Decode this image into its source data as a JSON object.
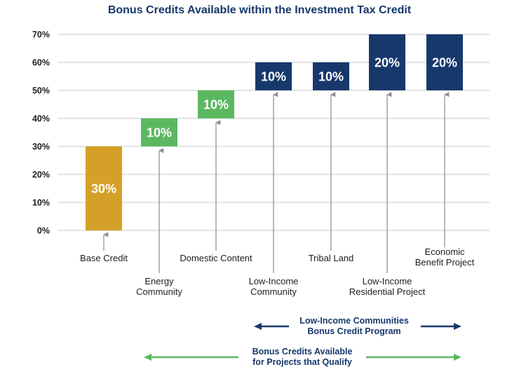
{
  "chart_data": {
    "type": "bar",
    "title": "Bonus Credits Available within the Investment Tax Credit",
    "ylim": [
      0,
      70
    ],
    "yticks": [
      "0%",
      "10%",
      "20%",
      "30%",
      "40%",
      "50%",
      "60%",
      "70%"
    ],
    "grid": true,
    "categories": [
      [
        "Base Credit"
      ],
      [
        "Energy",
        "Community"
      ],
      [
        "Domestic Content"
      ],
      [
        "Low-Income",
        "Community"
      ],
      [
        "Tribal Land"
      ],
      [
        "Low-Income",
        "Residential Project"
      ],
      [
        "Economic",
        "Benefit Project"
      ]
    ],
    "bars": [
      {
        "start": 0,
        "end": 30,
        "label": "30%",
        "color": "#d4a028"
      },
      {
        "start": 30,
        "end": 40,
        "label": "10%",
        "color": "#5cb860"
      },
      {
        "start": 40,
        "end": 50,
        "label": "10%",
        "color": "#5cb860"
      },
      {
        "start": 50,
        "end": 60,
        "label": "10%",
        "color": "#17386b"
      },
      {
        "start": 50,
        "end": 60,
        "label": "10%",
        "color": "#17386b"
      },
      {
        "start": 50,
        "end": 70,
        "label": "20%",
        "color": "#17386b"
      },
      {
        "start": 50,
        "end": 70,
        "label": "20%",
        "color": "#17386b"
      }
    ],
    "annotations": [
      {
        "lines": [
          "Low-Income Communities",
          "Bonus Credit Program"
        ],
        "color": "#17386b"
      },
      {
        "lines": [
          "Bonus Credits Available",
          "for Projects that Qualify"
        ],
        "color": "#5cb860"
      }
    ]
  },
  "colors": {
    "title": "#17386b",
    "grid": "#c8c8c8",
    "pointer": "#8c8c8c",
    "navy": "#17386b",
    "green": "#5cb860",
    "gold": "#d4a028"
  }
}
